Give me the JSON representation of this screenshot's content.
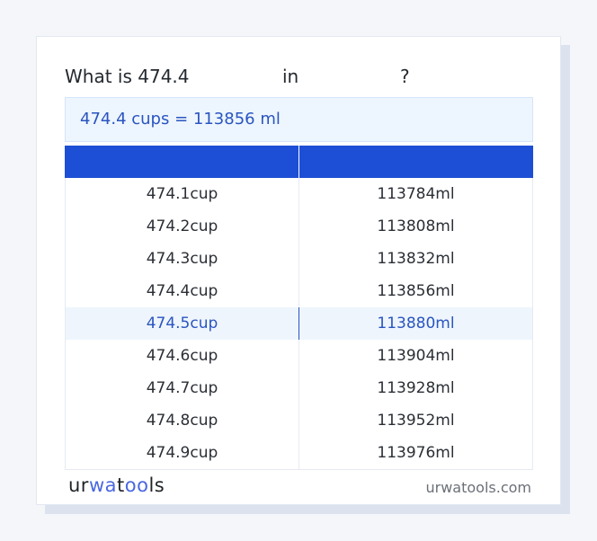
{
  "question": {
    "prefix": "What is 474.4",
    "middle": "in",
    "suffix": "?"
  },
  "result": "474.4 cups = 113856 ml",
  "table": {
    "headers": [
      "",
      ""
    ],
    "highlight_index": 4,
    "rows": [
      [
        "474.1cup",
        "113784ml"
      ],
      [
        "474.2cup",
        "113808ml"
      ],
      [
        "474.3cup",
        "113832ml"
      ],
      [
        "474.4cup",
        "113856ml"
      ],
      [
        "474.5cup",
        "113880ml"
      ],
      [
        "474.6cup",
        "113904ml"
      ],
      [
        "474.7cup",
        "113928ml"
      ],
      [
        "474.8cup",
        "113952ml"
      ],
      [
        "474.9cup",
        "113976ml"
      ]
    ]
  },
  "footer": {
    "logo": "urwatools",
    "site": "urwatools.com"
  },
  "colors": {
    "accent": "#1d4fd6",
    "highlight_text": "#2a55c0"
  }
}
